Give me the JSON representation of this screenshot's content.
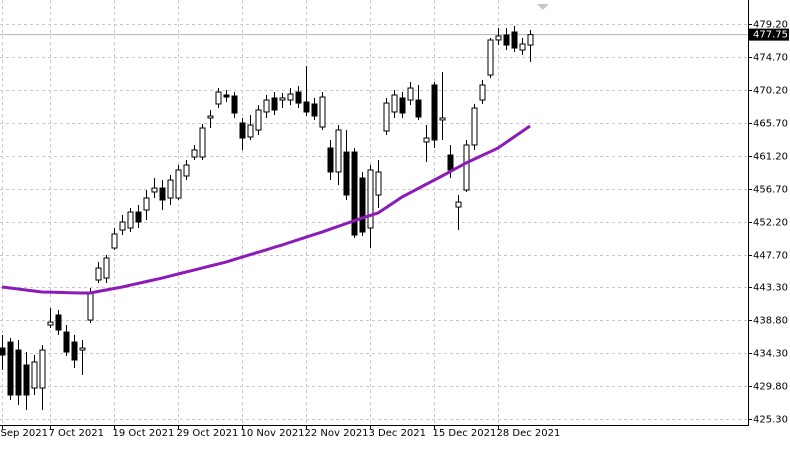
{
  "chart_data": {
    "type": "candlestick",
    "categories": [
      "Sep 2021",
      null,
      null,
      null,
      null,
      null,
      "7 Oct 2021",
      null,
      null,
      null,
      null,
      null,
      null,
      null,
      "19 Oct 2021",
      null,
      null,
      null,
      null,
      null,
      null,
      null,
      "29 Oct 2021",
      null,
      null,
      null,
      null,
      null,
      null,
      null,
      "10 Nov 2021",
      null,
      null,
      null,
      null,
      null,
      null,
      null,
      "22 Nov 2021",
      null,
      null,
      null,
      null,
      null,
      null,
      null,
      "3 Dec 2021",
      null,
      null,
      null,
      null,
      null,
      null,
      null,
      "15 Dec 2021",
      null,
      null,
      null,
      null,
      null,
      null,
      null,
      "28 Dec 2021",
      null,
      null,
      null,
      null
    ],
    "open": [
      435.02,
      435.83,
      434.74,
      432.7,
      429.56,
      429.56,
      438.15,
      439.52,
      437.2,
      435.83,
      434.74,
      438.83,
      444.29,
      444.56,
      448.65,
      451.11,
      451.38,
      453.56,
      453.83,
      456.29,
      456.83,
      455.47,
      455.47,
      458.47,
      461.06,
      461.06,
      466.38,
      468.29,
      469.52,
      469.38,
      465.7,
      463.79,
      464.74,
      467.2,
      469.11,
      468.83,
      468.83,
      469.92,
      468.56,
      468.29,
      465.15,
      462.29,
      459.02,
      461.74,
      461.74,
      458.2,
      451.38,
      455.88,
      464.61,
      467.2,
      469.11,
      468.83,
      468.83,
      463.11,
      470.88,
      466.11,
      461.33,
      454.24,
      456.56,
      462.7,
      468.83,
      472.24,
      477.02,
      477.7,
      478.11,
      475.65,
      476.33
    ],
    "high": [
      436.79,
      436.38,
      436.11,
      434.47,
      434.06,
      435.42,
      440.47,
      440.2,
      438.15,
      436.79,
      436.11,
      443.2,
      446.74,
      447.7,
      451.38,
      453.15,
      454.11,
      454.52,
      456.56,
      458.2,
      457.92,
      458.61,
      459.97,
      460.65,
      462.7,
      465.56,
      467.47,
      470.47,
      470.2,
      469.92,
      466.38,
      466.79,
      468.15,
      469.52,
      469.92,
      469.79,
      470.47,
      470.74,
      473.47,
      469.11,
      469.92,
      463.38,
      465.42,
      464.74,
      462.29,
      459.02,
      459.97,
      460.65,
      469.11,
      470.2,
      469.92,
      471.29,
      470.88,
      465.42,
      471.29,
      472.65,
      462.7,
      455.88,
      463.38,
      468.29,
      471.56,
      477.29,
      478.65,
      478.65,
      478.92,
      477.29,
      478.38
    ],
    "low": [
      432.02,
      427.92,
      427.24,
      426.56,
      428.61,
      426.56,
      437.74,
      436.79,
      433.92,
      432.29,
      431.33,
      438.42,
      443.88,
      443.88,
      448.38,
      450.42,
      450.83,
      451.38,
      452.47,
      455.47,
      453.83,
      454.52,
      455.2,
      457.92,
      460.65,
      460.65,
      465.02,
      467.74,
      468.56,
      466.38,
      462.02,
      463.38,
      464.06,
      466.38,
      466.79,
      467.74,
      468.15,
      467.74,
      466.65,
      466.11,
      464.74,
      457.92,
      457.24,
      455.2,
      450.02,
      450.29,
      448.65,
      454.11,
      464.06,
      466.38,
      466.38,
      468.15,
      466.11,
      460.38,
      462.29,
      463.38,
      458.2,
      451.11,
      456.29,
      462.02,
      468.29,
      471.83,
      476.33,
      475.65,
      475.38,
      474.97,
      474.02
    ],
    "close": [
      434.06,
      428.61,
      428.61,
      428.61,
      433.11,
      434.74,
      438.56,
      437.47,
      434.47,
      433.38,
      435.02,
      442.52,
      445.92,
      447.29,
      450.56,
      452.2,
      453.56,
      452.2,
      455.47,
      456.83,
      455.2,
      457.92,
      459.29,
      459.97,
      462.02,
      465.02,
      466.65,
      469.92,
      469.24,
      467.06,
      463.65,
      465.42,
      467.47,
      468.83,
      467.47,
      469.11,
      469.65,
      468.42,
      467.2,
      466.65,
      469.24,
      459.02,
      464.74,
      455.88,
      450.42,
      450.83,
      459.29,
      459.02,
      468.42,
      469.52,
      467.06,
      470.47,
      466.52,
      463.65,
      463.38,
      466.38,
      459.29,
      454.92,
      462.7,
      467.74,
      470.88,
      477.02,
      477.56,
      476.33,
      475.92,
      476.47,
      477.75
    ],
    "up_color": "#ffffff",
    "down_color": "#000000",
    "outline_color": "#000000",
    "ma_values": [
      443.33,
      443.2,
      443.06,
      442.93,
      442.79,
      442.65,
      442.63,
      442.6,
      442.57,
      442.54,
      442.52,
      442.52,
      442.72,
      442.93,
      443.13,
      443.33,
      443.58,
      443.82,
      444.07,
      444.31,
      444.56,
      444.83,
      445.11,
      445.38,
      445.65,
      445.92,
      446.2,
      446.47,
      446.74,
      447.07,
      447.41,
      447.74,
      448.07,
      448.39,
      448.74,
      449.06,
      449.42,
      449.77,
      450.13,
      450.48,
      450.83,
      451.22,
      451.6,
      451.98,
      452.36,
      452.74,
      453.08,
      453.43,
      454.15,
      454.88,
      455.61,
      456.18,
      456.75,
      457.33,
      457.9,
      458.47,
      459.06,
      459.66,
      460.24,
      460.75,
      461.27,
      461.77,
      462.29,
      463.04,
      463.79,
      464.54,
      465.29
    ],
    "ma_color": "#8c1bb8",
    "last_price": 477.75,
    "ylim": [
      424.52,
      482.47
    ],
    "yticks": [
      {
        "value": 425.3,
        "label": "425.30"
      },
      {
        "value": 429.8,
        "label": "429.80"
      },
      {
        "value": 434.3,
        "label": "434.30"
      },
      {
        "value": 438.8,
        "label": "438.80"
      },
      {
        "value": 443.3,
        "label": "443.30"
      },
      {
        "value": 447.7,
        "label": "447.70"
      },
      {
        "value": 452.2,
        "label": "452.20"
      },
      {
        "value": 456.7,
        "label": "456.70"
      },
      {
        "value": 461.2,
        "label": "461.20"
      },
      {
        "value": 465.7,
        "label": "465.70"
      },
      {
        "value": 470.2,
        "label": "470.20"
      },
      {
        "value": 474.7,
        "label": "474.70"
      },
      {
        "value": 479.2,
        "label": "479.20"
      }
    ],
    "grid": true
  }
}
